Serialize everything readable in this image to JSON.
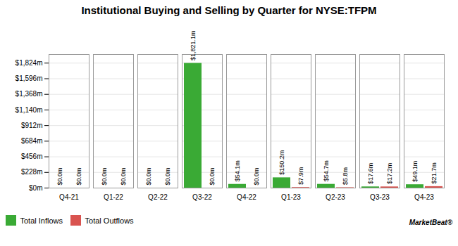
{
  "chart_data": {
    "type": "bar",
    "title": "Institutional Buying and Selling by Quarter for NYSE:TFPM",
    "categories": [
      "Q4-21",
      "Q1-22",
      "Q2-22",
      "Q3-22",
      "Q4-22",
      "Q1-23",
      "Q2-23",
      "Q3-23",
      "Q4-23"
    ],
    "series": [
      {
        "name": "Total Inflows",
        "color": "#3aaa35",
        "values": [
          0.0,
          0.0,
          0.0,
          1821.1,
          54.1,
          150.2,
          54.7,
          17.6,
          49.1
        ],
        "value_labels": [
          "$0.0m",
          "$0.0m",
          "$0.0m",
          "$1,821.1m",
          "$54.1m",
          "$150.2m",
          "$54.7m",
          "$17.6m",
          "$49.1m"
        ]
      },
      {
        "name": "Total Outflows",
        "color": "#d9534f",
        "values": [
          0.0,
          0.0,
          0.0,
          0.0,
          0.0,
          7.9,
          5.8,
          17.2,
          21.7
        ],
        "value_labels": [
          "$0.0m",
          "$0.0m",
          "$0.0m",
          "$0.0m",
          "$0.0m",
          "$7.9m",
          "$5.8m",
          "$17.2m",
          "$21.7m"
        ]
      }
    ],
    "ylim": [
      0,
      1950
    ],
    "yticks": [
      {
        "value": 0,
        "label": "$0m"
      },
      {
        "value": 228,
        "label": "$228m"
      },
      {
        "value": 456,
        "label": "$456m"
      },
      {
        "value": 684,
        "label": "$684m"
      },
      {
        "value": 912,
        "label": "$912m"
      },
      {
        "value": 1140,
        "label": "$1,140m"
      },
      {
        "value": 1368,
        "label": "$1,368m"
      },
      {
        "value": 1596,
        "label": "$1,596m"
      },
      {
        "value": 1824,
        "label": "$1,824m"
      }
    ],
    "grid": true,
    "data_labels": true,
    "legend": "bottom",
    "annotations": [
      "MarketBeat®"
    ]
  }
}
